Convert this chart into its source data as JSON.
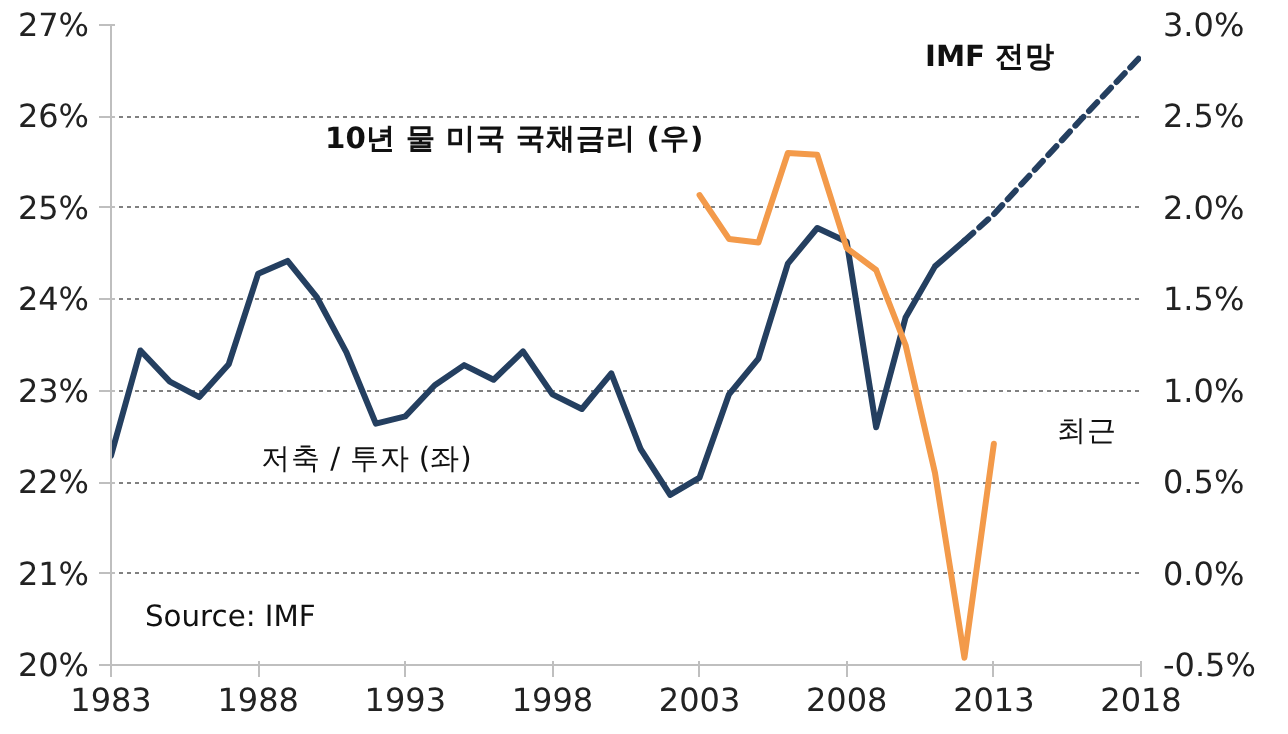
{
  "chart_data": {
    "type": "line",
    "xlim": [
      1983,
      2018
    ],
    "xticks": [
      1983,
      1988,
      1993,
      1998,
      2003,
      2008,
      2013,
      2018
    ],
    "ylim": [
      20,
      27
    ],
    "yticks": [
      {
        "value": 20,
        "label": "20%"
      },
      {
        "value": 21,
        "label": "21%"
      },
      {
        "value": 22,
        "label": "22%"
      },
      {
        "value": 23,
        "label": "23%"
      },
      {
        "value": 24,
        "label": "24%"
      },
      {
        "value": 25,
        "label": "25%"
      },
      {
        "value": 26,
        "label": "26%"
      },
      {
        "value": 27,
        "label": "27%"
      }
    ],
    "y2lim": [
      -0.5,
      3.0
    ],
    "y2ticks": [
      {
        "value": -0.5,
        "label": "-0.5%"
      },
      {
        "value": 0,
        "label": "0.0%"
      },
      {
        "value": 0.5,
        "label": "0.5%"
      },
      {
        "value": 1,
        "label": "1.0%"
      },
      {
        "value": 1.5,
        "label": "1.5%"
      },
      {
        "value": 2,
        "label": "2.0%"
      },
      {
        "value": 2.5,
        "label": "2.5%"
      },
      {
        "value": 3,
        "label": "3.0%"
      }
    ],
    "grid": "y",
    "series": [
      {
        "color": "#243f60",
        "line_style": "solid",
        "x": [
          1983,
          1984,
          1985,
          1986,
          1987,
          1988,
          1989,
          1990,
          1991,
          1992,
          1993,
          1994,
          1995,
          1996,
          1997,
          1998,
          1999,
          2000,
          2001,
          2002,
          2003,
          2004,
          2005,
          2006,
          2007,
          2008,
          2009,
          2010,
          2011,
          2012
        ],
        "values": [
          22.29,
          23.44,
          23.1,
          22.93,
          23.29,
          24.28,
          24.42,
          24.02,
          23.42,
          22.64,
          22.72,
          23.06,
          23.28,
          23.12,
          23.43,
          22.96,
          22.8,
          23.19,
          22.36,
          21.86,
          22.05,
          22.96,
          23.35,
          24.39,
          24.78,
          24.63,
          22.6,
          23.8,
          24.36,
          24.64
        ]
      },
      {
        "color": "#243f60",
        "line_style": "dashed",
        "x": [
          2012,
          2013,
          2014,
          2015,
          2016,
          2017,
          2018
        ],
        "values": [
          24.64,
          24.93,
          25.28,
          25.63,
          25.98,
          26.32,
          26.66
        ]
      },
      {
        "color": "#f39a4a",
        "line_style": "solid",
        "axis": "y2",
        "x": [
          2003,
          2004,
          2005,
          2006,
          2007,
          2008,
          2009,
          2010,
          2011,
          2012,
          2013
        ],
        "values": [
          2.07,
          1.83,
          1.81,
          2.3,
          2.29,
          1.78,
          1.66,
          1.25,
          0.55,
          -0.46,
          0.71
        ]
      }
    ],
    "annotations": [
      "10년 물 미국 국채금리 (우)",
      "저축 / 투자 (좌)",
      "IMF 전망",
      "최근",
      "Source: IMF"
    ]
  }
}
